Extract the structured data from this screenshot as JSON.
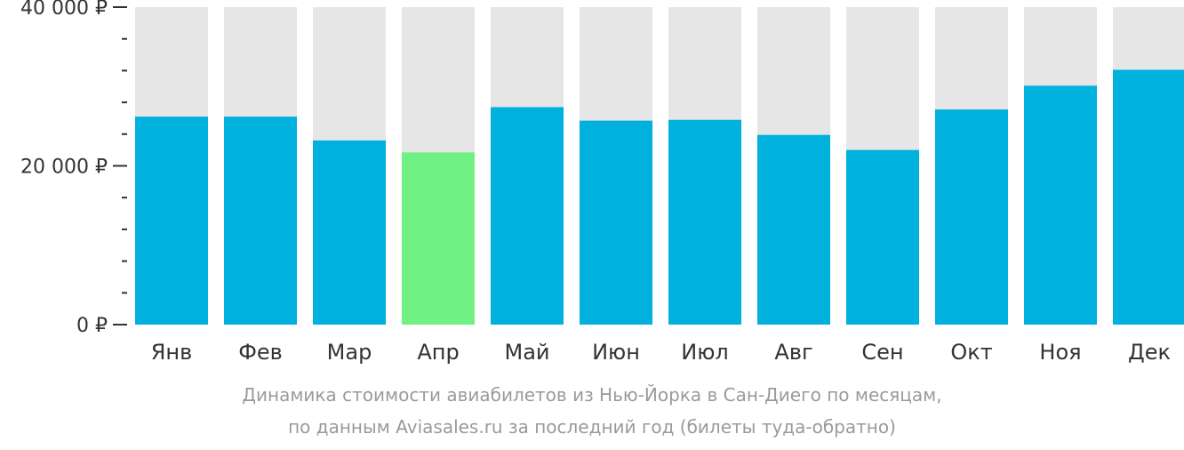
{
  "chart_data": {
    "type": "bar",
    "categories": [
      "Янв",
      "Фев",
      "Мар",
      "Апр",
      "Май",
      "Июн",
      "Июл",
      "Авг",
      "Сен",
      "Окт",
      "Ноя",
      "Дек"
    ],
    "values": [
      26200,
      26200,
      23200,
      21700,
      27400,
      25700,
      25800,
      23900,
      22000,
      27100,
      30100,
      32100
    ],
    "ylim": [
      0,
      40000
    ],
    "yticks": [
      {
        "value": 0,
        "label": "0 ₽"
      },
      {
        "value": 20000,
        "label": "20 000 ₽"
      },
      {
        "value": 40000,
        "label": "40 000 ₽"
      }
    ],
    "minor_tick_step": 4000,
    "highlight_index": 3,
    "grid": false,
    "legend": "none",
    "colors": {
      "bar": "#00b0dd",
      "highlight": "#6ff283",
      "track": "#e6e6e6",
      "axis_text": "#333333",
      "caption": "#9a9a9a"
    },
    "caption": {
      "line1": "Динамика стоимости авиабилетов из Нью-Йорка в Сан-Диего по месяцам,",
      "line2": "по данным Aviasales.ru за последний год (билеты туда-обратно)"
    }
  }
}
